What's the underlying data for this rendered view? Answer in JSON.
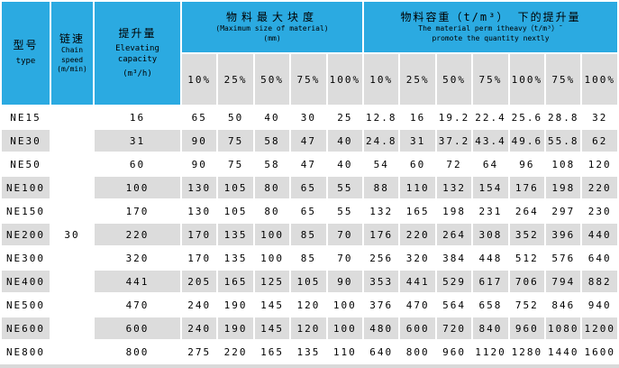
{
  "colors": {
    "header_blue": "#2baae1",
    "cell_gray": "#dcdcdc",
    "row_white": "#ffffff",
    "bottom_edge": "#d9d9d9",
    "text": "#000000"
  },
  "header": {
    "model": {
      "zh": "型号",
      "en": "type"
    },
    "chain_speed": {
      "zh": "链速",
      "en_lines": [
        "Chain",
        "speed",
        "(m/min)"
      ]
    },
    "capacity": {
      "zh": "提升量",
      "en": "Elevating capacity",
      "unit": "(m³/h)"
    },
    "group_max_size": {
      "zh": "物料最大块度",
      "en": "(Maximum size of material)",
      "unit": "(mm)"
    },
    "group_density": {
      "zh": "物料容重（t/m³） 下的提升量",
      "en_line1": "The material perm itheavy（t/m³）ˉ",
      "en_line2": "promote the quantity nextly"
    },
    "max_size_percents": [
      "10%",
      "25%",
      "50%",
      "75%",
      "100%"
    ],
    "density_percents": [
      "10%",
      "25%",
      "50%",
      "75%",
      "100%",
      "75%",
      "100%"
    ]
  },
  "chain_speed_value": "30",
  "rows": [
    {
      "model": "NE15",
      "capacity": "16",
      "max_size": [
        "65",
        "50",
        "40",
        "30",
        "25"
      ],
      "density_capacity": [
        "12.8",
        "16",
        "19.2",
        "22.4",
        "25.6",
        "28.8",
        "32"
      ]
    },
    {
      "model": "NE30",
      "capacity": "31",
      "max_size": [
        "90",
        "75",
        "58",
        "47",
        "40"
      ],
      "density_capacity": [
        "24.8",
        "31",
        "37.2",
        "43.4",
        "49.6",
        "55.8",
        "62"
      ]
    },
    {
      "model": "NE50",
      "capacity": "60",
      "max_size": [
        "90",
        "75",
        "58",
        "47",
        "40"
      ],
      "density_capacity": [
        "54",
        "60",
        "72",
        "64",
        "96",
        "108",
        "120"
      ]
    },
    {
      "model": "NE100",
      "capacity": "100",
      "max_size": [
        "130",
        "105",
        "80",
        "65",
        "55"
      ],
      "density_capacity": [
        "88",
        "110",
        "132",
        "154",
        "176",
        "198",
        "220"
      ]
    },
    {
      "model": "NE150",
      "capacity": "170",
      "max_size": [
        "130",
        "105",
        "80",
        "65",
        "55"
      ],
      "density_capacity": [
        "132",
        "165",
        "198",
        "231",
        "264",
        "297",
        "230"
      ]
    },
    {
      "model": "NE200",
      "capacity": "220",
      "max_size": [
        "170",
        "135",
        "100",
        "85",
        "70"
      ],
      "density_capacity": [
        "176",
        "220",
        "264",
        "308",
        "352",
        "396",
        "440"
      ]
    },
    {
      "model": "NE300",
      "capacity": "320",
      "max_size": [
        "170",
        "135",
        "100",
        "85",
        "70"
      ],
      "density_capacity": [
        "256",
        "320",
        "384",
        "448",
        "512",
        "576",
        "640"
      ]
    },
    {
      "model": "NE400",
      "capacity": "441",
      "max_size": [
        "205",
        "165",
        "125",
        "105",
        "90"
      ],
      "density_capacity": [
        "353",
        "441",
        "529",
        "617",
        "706",
        "794",
        "882"
      ]
    },
    {
      "model": "NE500",
      "capacity": "470",
      "max_size": [
        "240",
        "190",
        "145",
        "120",
        "100"
      ],
      "density_capacity": [
        "376",
        "470",
        "564",
        "658",
        "752",
        "846",
        "940"
      ]
    },
    {
      "model": "NE600",
      "capacity": "600",
      "max_size": [
        "240",
        "190",
        "145",
        "120",
        "100"
      ],
      "density_capacity": [
        "480",
        "600",
        "720",
        "840",
        "960",
        "1080",
        "1200"
      ]
    },
    {
      "model": "NE800",
      "capacity": "800",
      "max_size": [
        "275",
        "220",
        "165",
        "135",
        "110"
      ],
      "density_capacity": [
        "640",
        "800",
        "960",
        "1120",
        "1280",
        "1440",
        "1600"
      ]
    }
  ]
}
